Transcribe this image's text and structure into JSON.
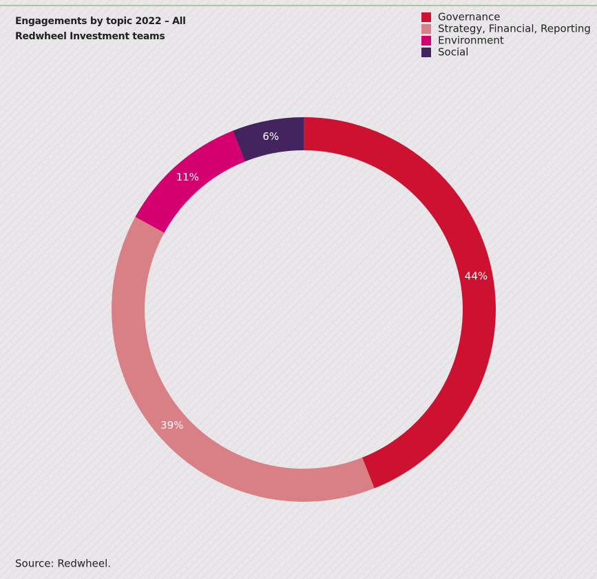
{
  "chart_data": {
    "type": "donut",
    "title": "Engagements by topic 2022 – All Redwheel Investment teams",
    "categories": [
      "Governance",
      "Strategy, Financial, Reporting",
      "Environment",
      "Social"
    ],
    "values": [
      44,
      39,
      11,
      6
    ],
    "value_labels": [
      "44%",
      "39%",
      "11%",
      "6%"
    ],
    "colors": [
      "#cc1230",
      "#d98086",
      "#d4006f",
      "#43245f"
    ],
    "legend": "top-right",
    "source": "Source: Redwheel."
  }
}
